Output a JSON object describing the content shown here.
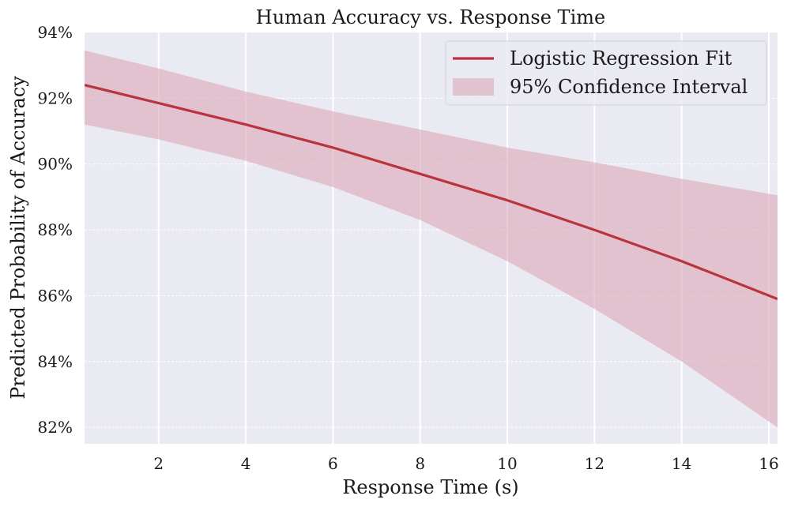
{
  "chart_data": {
    "type": "line",
    "title": "Human Accuracy vs. Response Time",
    "xlabel": "Response Time (s)",
    "ylabel": "Predicted Probability of Accuracy",
    "xlim": [
      0.3,
      16.2
    ],
    "ylim": [
      81.5,
      94.0
    ],
    "x_ticks": [
      2,
      4,
      6,
      8,
      10,
      12,
      14,
      16
    ],
    "x_tick_labels": [
      "2",
      "4",
      "6",
      "8",
      "10",
      "12",
      "14",
      "16"
    ],
    "y_ticks": [
      82,
      84,
      86,
      88,
      90,
      92,
      94
    ],
    "y_tick_labels": [
      "82%",
      "84%",
      "86%",
      "88%",
      "90%",
      "92%",
      "94%"
    ],
    "grid": true,
    "legend_position": "top-right",
    "x": [
      0.3,
      2,
      4,
      6,
      8,
      10,
      12,
      14,
      16.2
    ],
    "series": [
      {
        "name": "Logistic Regression Fit",
        "type": "line",
        "color": "#b8343f",
        "values": [
          92.4,
          91.85,
          91.2,
          90.5,
          89.7,
          88.9,
          88.0,
          87.05,
          85.9
        ]
      },
      {
        "name": "95% Confidence Interval",
        "type": "band",
        "color": "#d9a1b0",
        "lower": [
          91.2,
          90.75,
          90.1,
          89.3,
          88.3,
          87.05,
          85.6,
          84.0,
          82.0
        ],
        "upper": [
          93.45,
          92.9,
          92.2,
          91.6,
          91.05,
          90.5,
          90.05,
          89.55,
          89.05
        ]
      }
    ]
  },
  "colors": {
    "plot_background": "#eaeaf2",
    "grid": "#ffffff",
    "text": "#1a1a1a"
  }
}
